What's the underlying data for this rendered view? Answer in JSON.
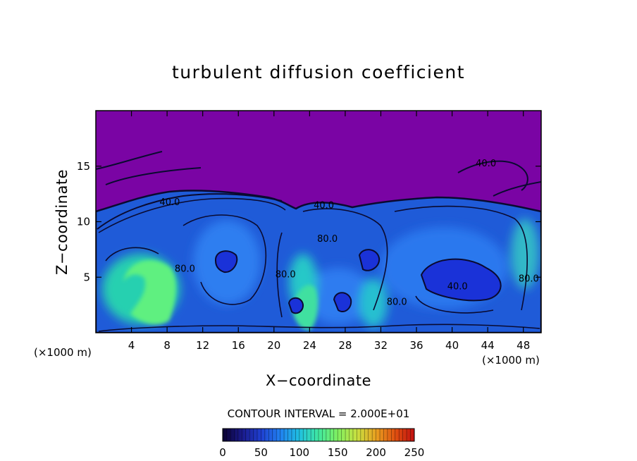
{
  "chart_data": {
    "type": "heatmap",
    "title": "turbulent diffusion coefficient",
    "xlabel": "X−coordinate",
    "ylabel": "Z−coordinate",
    "x_unit": "(×1000 m)",
    "x_unit_right": "(×1000 m)",
    "xlim": [
      0,
      50
    ],
    "ylim": [
      0,
      20
    ],
    "x_ticks": [
      4,
      8,
      12,
      16,
      20,
      24,
      28,
      32,
      36,
      40,
      44,
      48
    ],
    "y_ticks": [
      5,
      10,
      15
    ],
    "contour_interval_text": "CONTOUR INTERVAL = 2.000E+01",
    "colorbar": {
      "range": [
        0,
        250
      ],
      "ticks": [
        0,
        50,
        100,
        150,
        200,
        250
      ],
      "colors": [
        "#0a0030",
        "#1a1a8a",
        "#1f3fd0",
        "#2080f0",
        "#20c0e0",
        "#40e8a0",
        "#80f060",
        "#c8e040",
        "#e8a020",
        "#e05010",
        "#c01010"
      ]
    },
    "background_color": "#7a04a4",
    "contour_labels": [
      {
        "text": "40.0",
        "x": 8.3,
        "z": 11.5
      },
      {
        "text": "80.0",
        "x": 10.0,
        "z": 5.5
      },
      {
        "text": "80.0",
        "x": 21.3,
        "z": 5.0
      },
      {
        "text": "80.0",
        "x": 26.0,
        "z": 8.2
      },
      {
        "text": "40.0",
        "x": 25.6,
        "z": 11.2
      },
      {
        "text": "80.0",
        "x": 33.8,
        "z": 2.5
      },
      {
        "text": "40.0",
        "x": 40.6,
        "z": 3.9
      },
      {
        "text": "40.0",
        "x": 43.8,
        "z": 15.0
      },
      {
        "text": "80.0",
        "x": 48.6,
        "z": 4.6
      }
    ]
  }
}
